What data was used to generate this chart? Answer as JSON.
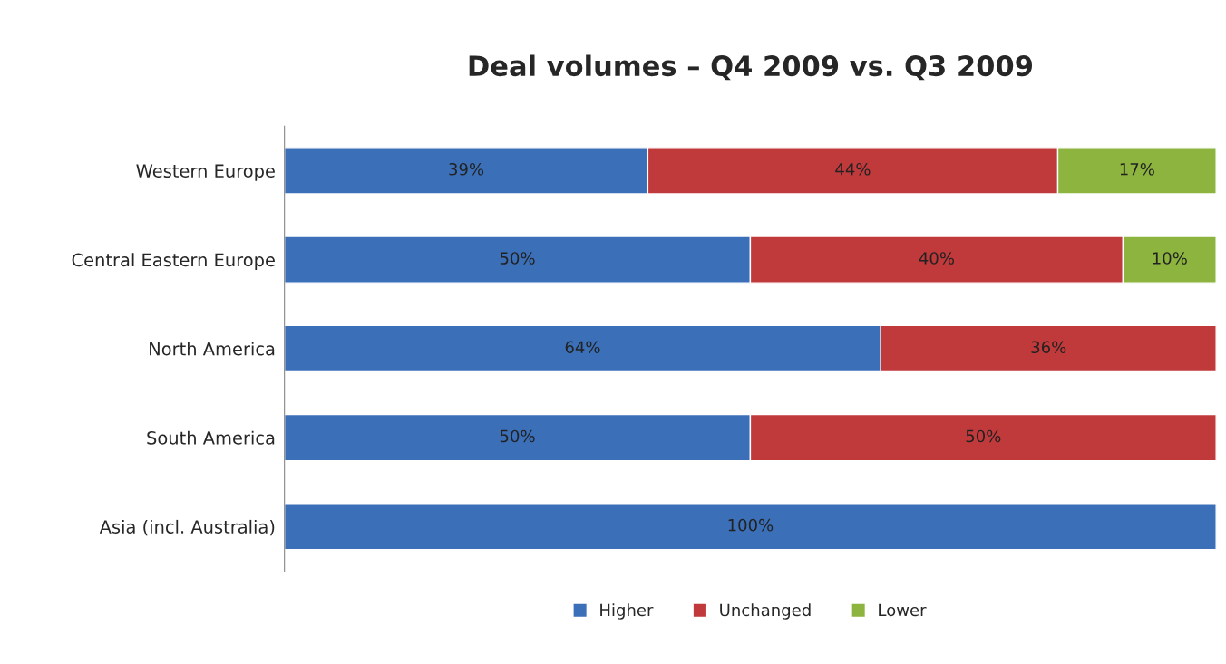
{
  "chart_data": {
    "type": "bar",
    "title": "Deal volumes – Q4 2009 vs. Q3 2009",
    "orientation": "horizontal",
    "stacked": true,
    "categories": [
      "Western Europe",
      "Central Eastern Europe",
      "North America",
      "South America",
      "Asia (incl. Australia)"
    ],
    "series": [
      {
        "name": "Higher",
        "color": "#3b70b9",
        "values": [
          39,
          50,
          64,
          50,
          100
        ],
        "value_labels": [
          "39%",
          "50%",
          "64%",
          "50%",
          "100%"
        ]
      },
      {
        "name": "Unchanged",
        "color": "#c0393b",
        "values": [
          44,
          40,
          36,
          50,
          null
        ],
        "value_labels": [
          "44%",
          "40%",
          "36%",
          "50%",
          null
        ]
      },
      {
        "name": "Lower",
        "color": "#8db43e",
        "values": [
          17,
          10,
          null,
          null,
          null
        ],
        "value_labels": [
          "17%",
          "10%",
          null,
          null,
          null
        ]
      }
    ],
    "xlim": [
      0,
      100
    ],
    "tick_labels": "y",
    "legend": "bottom"
  }
}
